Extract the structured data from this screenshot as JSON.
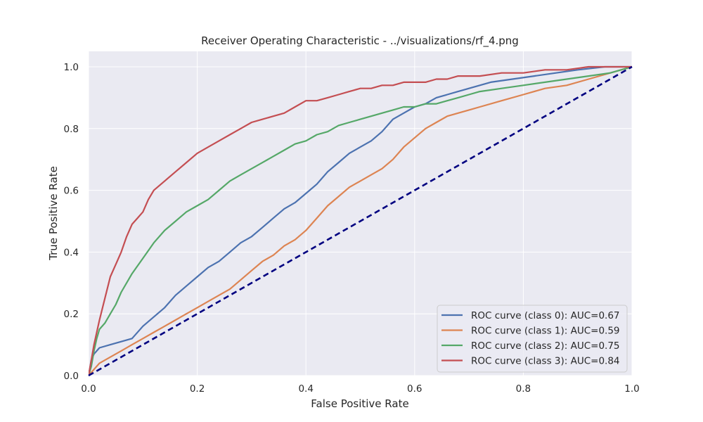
{
  "chart_data": {
    "type": "line",
    "title": "Receiver Operating Characteristic - ../visualizations/rf_4.png",
    "xlabel": "False Positive Rate",
    "ylabel": "True Positive Rate",
    "xlim": [
      0,
      1
    ],
    "ylim": [
      0,
      1.05
    ],
    "xticks": [
      "0.0",
      "0.2",
      "0.4",
      "0.6",
      "0.8",
      "1.0"
    ],
    "yticks": [
      "0.0",
      "0.2",
      "0.4",
      "0.6",
      "0.8",
      "1.0"
    ],
    "grid": true,
    "legend_position": "lower-right",
    "background": "#eaeaf2",
    "series": [
      {
        "name": "ROC curve (class 0): AUC=0.67",
        "color": "#4c72b0",
        "x": [
          0,
          0.005,
          0.01,
          0.02,
          0.04,
          0.06,
          0.08,
          0.1,
          0.12,
          0.14,
          0.16,
          0.18,
          0.2,
          0.22,
          0.24,
          0.26,
          0.28,
          0.3,
          0.32,
          0.34,
          0.36,
          0.38,
          0.4,
          0.42,
          0.44,
          0.46,
          0.48,
          0.5,
          0.52,
          0.54,
          0.56,
          0.58,
          0.6,
          0.62,
          0.64,
          0.66,
          0.68,
          0.7,
          0.74,
          0.78,
          0.82,
          0.86,
          0.9,
          0.95,
          1.0
        ],
        "y": [
          0,
          0.05,
          0.07,
          0.09,
          0.1,
          0.11,
          0.12,
          0.16,
          0.19,
          0.22,
          0.26,
          0.29,
          0.32,
          0.35,
          0.37,
          0.4,
          0.43,
          0.45,
          0.48,
          0.51,
          0.54,
          0.56,
          0.59,
          0.62,
          0.66,
          0.69,
          0.72,
          0.74,
          0.76,
          0.79,
          0.83,
          0.85,
          0.87,
          0.88,
          0.9,
          0.91,
          0.92,
          0.93,
          0.95,
          0.96,
          0.97,
          0.98,
          0.99,
          1.0,
          1.0
        ]
      },
      {
        "name": "ROC curve (class 1): AUC=0.59",
        "color": "#dd8452",
        "x": [
          0,
          0.005,
          0.01,
          0.02,
          0.04,
          0.06,
          0.08,
          0.1,
          0.12,
          0.14,
          0.16,
          0.18,
          0.2,
          0.22,
          0.24,
          0.26,
          0.28,
          0.3,
          0.32,
          0.34,
          0.36,
          0.38,
          0.4,
          0.42,
          0.44,
          0.46,
          0.48,
          0.5,
          0.52,
          0.54,
          0.56,
          0.58,
          0.6,
          0.62,
          0.64,
          0.66,
          0.68,
          0.7,
          0.72,
          0.76,
          0.8,
          0.84,
          0.88,
          0.92,
          0.96,
          1.0
        ],
        "y": [
          0,
          0.01,
          0.02,
          0.04,
          0.06,
          0.08,
          0.1,
          0.12,
          0.14,
          0.16,
          0.18,
          0.2,
          0.22,
          0.24,
          0.26,
          0.28,
          0.31,
          0.34,
          0.37,
          0.39,
          0.42,
          0.44,
          0.47,
          0.51,
          0.55,
          0.58,
          0.61,
          0.63,
          0.65,
          0.67,
          0.7,
          0.74,
          0.77,
          0.8,
          0.82,
          0.84,
          0.85,
          0.86,
          0.87,
          0.89,
          0.91,
          0.93,
          0.94,
          0.96,
          0.98,
          1.0
        ]
      },
      {
        "name": "ROC curve (class 2): AUC=0.75",
        "color": "#55a868",
        "x": [
          0,
          0.005,
          0.01,
          0.015,
          0.02,
          0.03,
          0.04,
          0.05,
          0.06,
          0.08,
          0.1,
          0.12,
          0.14,
          0.16,
          0.18,
          0.2,
          0.22,
          0.24,
          0.26,
          0.28,
          0.3,
          0.32,
          0.34,
          0.36,
          0.38,
          0.4,
          0.42,
          0.44,
          0.46,
          0.48,
          0.5,
          0.52,
          0.54,
          0.56,
          0.58,
          0.6,
          0.62,
          0.64,
          0.66,
          0.68,
          0.7,
          0.72,
          0.76,
          0.8,
          0.84,
          0.88,
          0.92,
          0.96,
          1.0
        ],
        "y": [
          0,
          0.03,
          0.08,
          0.12,
          0.15,
          0.17,
          0.2,
          0.23,
          0.27,
          0.33,
          0.38,
          0.43,
          0.47,
          0.5,
          0.53,
          0.55,
          0.57,
          0.6,
          0.63,
          0.65,
          0.67,
          0.69,
          0.71,
          0.73,
          0.75,
          0.76,
          0.78,
          0.79,
          0.81,
          0.82,
          0.83,
          0.84,
          0.85,
          0.86,
          0.87,
          0.87,
          0.88,
          0.88,
          0.89,
          0.9,
          0.91,
          0.92,
          0.93,
          0.94,
          0.95,
          0.96,
          0.97,
          0.98,
          1.0
        ]
      },
      {
        "name": "ROC curve (class 3): AUC=0.84",
        "color": "#c44e52",
        "x": [
          0,
          0.005,
          0.01,
          0.015,
          0.02,
          0.03,
          0.04,
          0.05,
          0.06,
          0.07,
          0.08,
          0.09,
          0.1,
          0.11,
          0.12,
          0.14,
          0.16,
          0.18,
          0.2,
          0.22,
          0.24,
          0.26,
          0.28,
          0.3,
          0.32,
          0.34,
          0.36,
          0.38,
          0.4,
          0.42,
          0.44,
          0.46,
          0.48,
          0.5,
          0.52,
          0.54,
          0.56,
          0.58,
          0.6,
          0.62,
          0.64,
          0.66,
          0.68,
          0.72,
          0.76,
          0.8,
          0.84,
          0.88,
          0.92,
          0.96,
          1.0
        ],
        "y": [
          0,
          0.05,
          0.1,
          0.14,
          0.18,
          0.25,
          0.32,
          0.36,
          0.4,
          0.45,
          0.49,
          0.51,
          0.53,
          0.57,
          0.6,
          0.63,
          0.66,
          0.69,
          0.72,
          0.74,
          0.76,
          0.78,
          0.8,
          0.82,
          0.83,
          0.84,
          0.85,
          0.87,
          0.89,
          0.89,
          0.9,
          0.91,
          0.92,
          0.93,
          0.93,
          0.94,
          0.94,
          0.95,
          0.95,
          0.95,
          0.96,
          0.96,
          0.97,
          0.97,
          0.98,
          0.98,
          0.99,
          0.99,
          1.0,
          1.0,
          1.0
        ]
      }
    ],
    "reference_line": {
      "x": [
        0,
        1
      ],
      "y": [
        0,
        1
      ],
      "color": "#000080",
      "style": "dashed"
    }
  }
}
